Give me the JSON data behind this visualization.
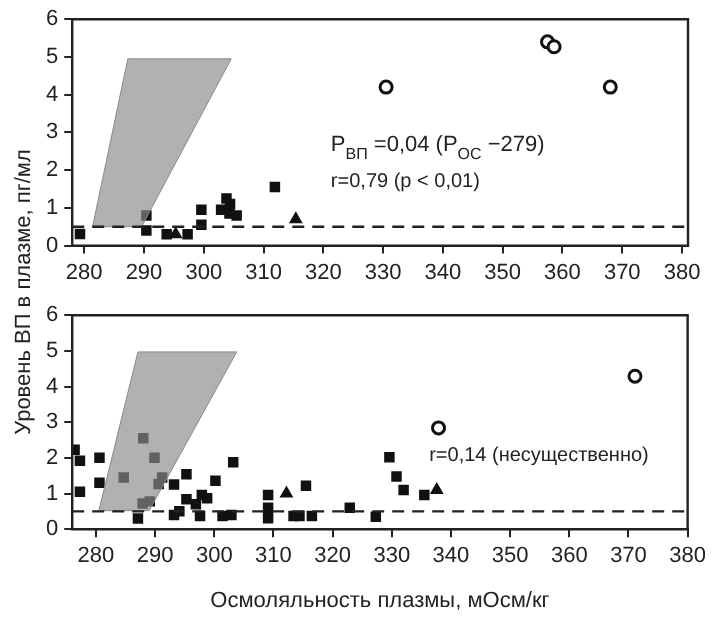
{
  "chart_data": [
    {
      "type": "scatter",
      "ylabel": "Уровень ВП в плазме, пг/мл",
      "xlim": [
        278,
        381
      ],
      "xticks": [
        280,
        290,
        300,
        310,
        320,
        330,
        340,
        350,
        360,
        370,
        380
      ],
      "ylim": [
        0,
        6
      ],
      "yticks": [
        0,
        1,
        2,
        3,
        4,
        5,
        6
      ],
      "grid": false,
      "legend": false,
      "annotations": [
        "P$_{ВП}$ =0,04 (P$_{ОС}$ −279)",
        "r=0,79 (p < 0,01)"
      ],
      "ref_lines": [
        {
          "axis": "y",
          "value": 0.5,
          "line_style": "dashed",
          "color": "#222222"
        }
      ],
      "series": [
        {
          "type": "area",
          "color": "#8a8a8a",
          "x": [
            281.4,
            289.6,
            304.6,
            287.3,
            281.4
          ],
          "values": [
            0.5,
            0.5,
            4.95,
            4.95,
            0.5
          ]
        },
        {
          "type": "scatter",
          "marker": "square",
          "color": "#111111",
          "x": [
            279.3,
            290.4,
            290.4,
            293.8,
            297.3,
            299.6,
            299.6,
            302.9,
            303.8,
            304.4,
            304.3,
            305.5,
            311.9
          ],
          "values": [
            0.31,
            0.8,
            0.4,
            0.3,
            0.3,
            0.95,
            0.55,
            0.95,
            1.25,
            1.1,
            0.85,
            0.8,
            1.55
          ]
        },
        {
          "type": "scatter",
          "marker": "triangle",
          "color": "#111111",
          "x": [
            295.3,
            315.4
          ],
          "values": [
            0.3,
            0.7
          ]
        },
        {
          "type": "scatter",
          "marker": "circle",
          "color": "#111111",
          "x": [
            330.5,
            357.5,
            358.6,
            368.0
          ],
          "values": [
            4.2,
            5.4,
            5.27,
            4.2
          ]
        }
      ]
    },
    {
      "type": "scatter",
      "xlabel": "Осмоляльность плазмы, мОсм/кг",
      "xlim": [
        276,
        380
      ],
      "xticks": [
        280,
        290,
        300,
        310,
        320,
        330,
        340,
        350,
        360,
        370,
        380
      ],
      "ylim": [
        0,
        6
      ],
      "yticks": [
        0,
        1,
        2,
        3,
        4,
        5,
        6
      ],
      "grid": false,
      "legend": false,
      "annotations": [
        "r=0,14 (несущественно)"
      ],
      "ref_lines": [
        {
          "axis": "y",
          "value": 0.5,
          "line_style": "dashed",
          "color": "#222222"
        }
      ],
      "series": [
        {
          "type": "area",
          "color": "#8a8a8a",
          "x": [
            280.5,
            289.0,
            303.8,
            287.1,
            280.5
          ],
          "values": [
            0.52,
            0.52,
            4.97,
            4.97,
            0.52
          ]
        },
        {
          "type": "scatter",
          "marker": "square",
          "color": "#111111",
          "x": [
            276.4,
            277.3,
            277.3,
            280.6,
            280.6,
            284.7,
            288.0,
            287.1,
            287.9,
            289.1,
            289.9,
            290.6,
            291.2,
            293.2,
            293.2,
            294.1,
            295.3,
            295.3,
            296.9,
            297.9,
            298.8,
            297.6,
            300.2,
            300.5,
            301.4,
            302.9,
            303.2,
            309.1,
            309.1,
            309.1,
            313.4,
            314.4,
            315.5,
            316.5,
            322.9,
            327.3,
            329.6,
            330.8,
            332.0,
            335.5
          ],
          "values": [
            2.23,
            1.92,
            1.05,
            2.0,
            1.3,
            1.45,
            2.55,
            0.3,
            0.72,
            0.78,
            2.0,
            1.27,
            1.45,
            1.25,
            0.4,
            0.5,
            0.84,
            1.54,
            0.7,
            0.96,
            0.87,
            0.37,
            1.36,
            null,
            0.37,
            0.4,
            1.88,
            0.96,
            0.6,
            0.31,
            0.37,
            0.37,
            1.22,
            0.37,
            0.6,
            0.35,
            2.02,
            1.48,
            1.1,
            0.96
          ]
        },
        {
          "type": "scatter",
          "marker": "triangle",
          "color": "#111111",
          "x": [
            312.2,
            337.6
          ],
          "values": [
            1.0,
            1.1
          ]
        },
        {
          "type": "scatter",
          "marker": "circle",
          "color": "#111111",
          "x": [
            337.9,
            371.1
          ],
          "values": [
            2.84,
            4.29
          ]
        }
      ]
    }
  ]
}
